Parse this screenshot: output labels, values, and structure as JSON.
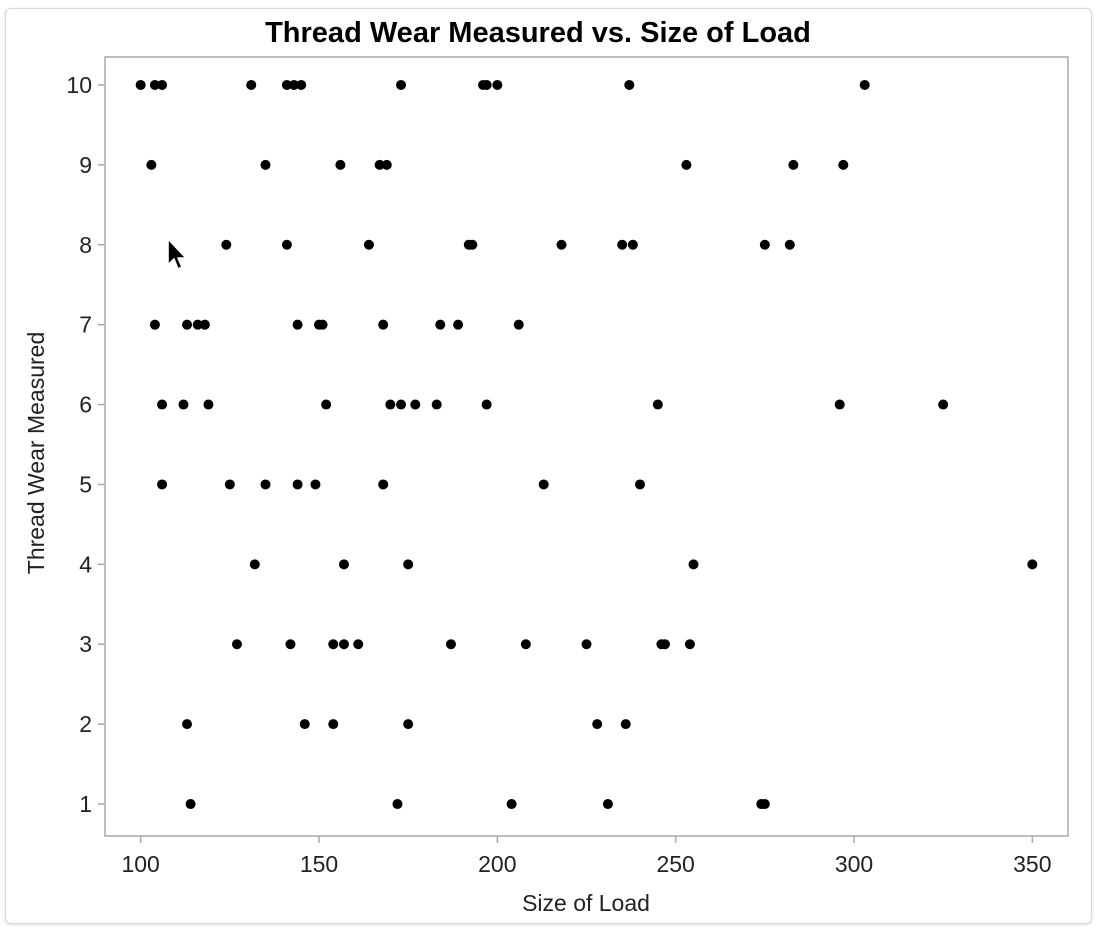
{
  "chart_data": {
    "type": "scatter",
    "title": "Thread Wear Measured vs. Size of Load",
    "xlabel": "Size of Load",
    "ylabel": "Thread Wear Measured",
    "xlim": [
      90,
      360
    ],
    "ylim": [
      0.6,
      10.35
    ],
    "xticks": [
      100,
      150,
      200,
      250,
      300,
      350
    ],
    "yticks": [
      1,
      2,
      3,
      4,
      5,
      6,
      7,
      8,
      9,
      10
    ],
    "grid": false,
    "marker_color": "#000000",
    "frame_color": "#a9a9a9",
    "points": [
      [
        100,
        10
      ],
      [
        104,
        10
      ],
      [
        106,
        10
      ],
      [
        131,
        10
      ],
      [
        141,
        10
      ],
      [
        143,
        10
      ],
      [
        145,
        10
      ],
      [
        173,
        10
      ],
      [
        196,
        10
      ],
      [
        197,
        10
      ],
      [
        200,
        10
      ],
      [
        237,
        10
      ],
      [
        303,
        10
      ],
      [
        103,
        9
      ],
      [
        135,
        9
      ],
      [
        156,
        9
      ],
      [
        167,
        9
      ],
      [
        169,
        9
      ],
      [
        253,
        9
      ],
      [
        283,
        9
      ],
      [
        297,
        9
      ],
      [
        124,
        8
      ],
      [
        141,
        8
      ],
      [
        164,
        8
      ],
      [
        192,
        8
      ],
      [
        193,
        8
      ],
      [
        218,
        8
      ],
      [
        235,
        8
      ],
      [
        238,
        8
      ],
      [
        275,
        8
      ],
      [
        282,
        8
      ],
      [
        104,
        7
      ],
      [
        113,
        7
      ],
      [
        116,
        7
      ],
      [
        118,
        7
      ],
      [
        144,
        7
      ],
      [
        150,
        7
      ],
      [
        151,
        7
      ],
      [
        168,
        7
      ],
      [
        184,
        7
      ],
      [
        189,
        7
      ],
      [
        206,
        7
      ],
      [
        106,
        6
      ],
      [
        112,
        6
      ],
      [
        119,
        6
      ],
      [
        152,
        6
      ],
      [
        170,
        6
      ],
      [
        173,
        6
      ],
      [
        177,
        6
      ],
      [
        183,
        6
      ],
      [
        197,
        6
      ],
      [
        245,
        6
      ],
      [
        296,
        6
      ],
      [
        325,
        6
      ],
      [
        106,
        5
      ],
      [
        125,
        5
      ],
      [
        135,
        5
      ],
      [
        144,
        5
      ],
      [
        149,
        5
      ],
      [
        168,
        5
      ],
      [
        213,
        5
      ],
      [
        240,
        5
      ],
      [
        132,
        4
      ],
      [
        157,
        4
      ],
      [
        175,
        4
      ],
      [
        255,
        4
      ],
      [
        350,
        4
      ],
      [
        127,
        3
      ],
      [
        142,
        3
      ],
      [
        154,
        3
      ],
      [
        157,
        3
      ],
      [
        161,
        3
      ],
      [
        187,
        3
      ],
      [
        208,
        3
      ],
      [
        225,
        3
      ],
      [
        246,
        3
      ],
      [
        247,
        3
      ],
      [
        254,
        3
      ],
      [
        113,
        2
      ],
      [
        146,
        2
      ],
      [
        154,
        2
      ],
      [
        175,
        2
      ],
      [
        228,
        2
      ],
      [
        236,
        2
      ],
      [
        114,
        1
      ],
      [
        172,
        1
      ],
      [
        204,
        1
      ],
      [
        231,
        1
      ],
      [
        274,
        1
      ],
      [
        275,
        1
      ]
    ]
  }
}
